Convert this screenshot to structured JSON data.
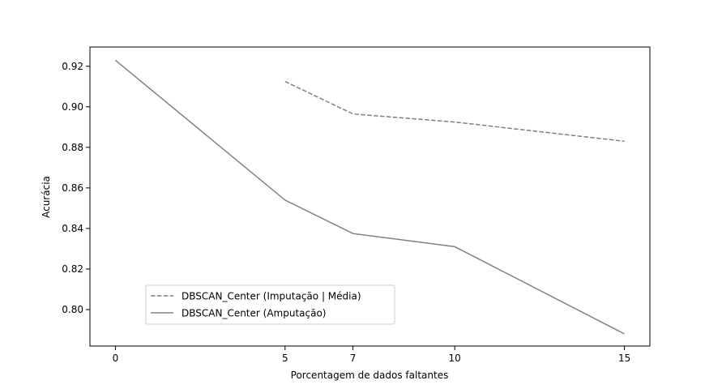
{
  "chart_data": {
    "type": "line",
    "title": "",
    "xlabel": "Porcentagem de dados faltantes",
    "ylabel": "Acurácia",
    "x_ticks": [
      0,
      5,
      7,
      10,
      15
    ],
    "y_ticks": [
      0.8,
      0.82,
      0.84,
      0.86,
      0.88,
      0.9,
      0.92
    ],
    "xlim": [
      -0.75,
      15.75
    ],
    "ylim": [
      0.782,
      0.9295
    ],
    "grid": false,
    "legend_position": "lower-left",
    "series": [
      {
        "name": "DBSCAN_Center (Imputação | Média)",
        "style": "dashed",
        "color": "#808080",
        "x": [
          5,
          7,
          10,
          15
        ],
        "y": [
          0.9125,
          0.8965,
          0.8925,
          0.883
        ]
      },
      {
        "name": "DBSCAN_Center (Amputação)",
        "style": "solid",
        "color": "#808080",
        "x": [
          0,
          5,
          7,
          10,
          15
        ],
        "y": [
          0.923,
          0.854,
          0.8375,
          0.831,
          0.788
        ]
      }
    ]
  }
}
